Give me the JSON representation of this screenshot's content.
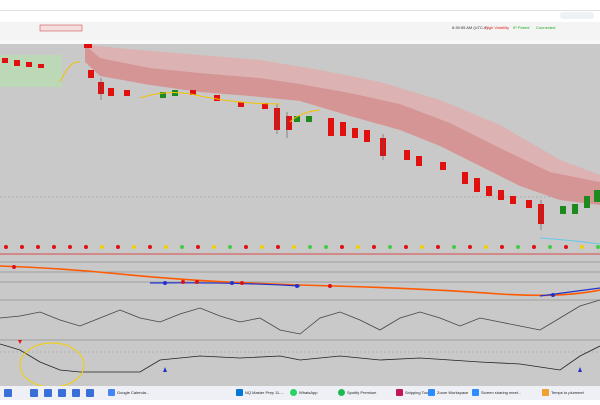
{
  "status": {
    "time": "6:39:55 AM (UTC-6)",
    "volatility": "High Volatility",
    "paired": "IP Paired",
    "connection": "Connected"
  },
  "taskbar": {
    "items": [
      "Google Calenda...",
      "NQ Master Prep 11-...",
      "WhatsApp",
      "Spotify Premium",
      "Snipping Tool",
      "Zoom Workspace",
      "Screen sharing meet...",
      "Temps to plummet"
    ]
  }
}
